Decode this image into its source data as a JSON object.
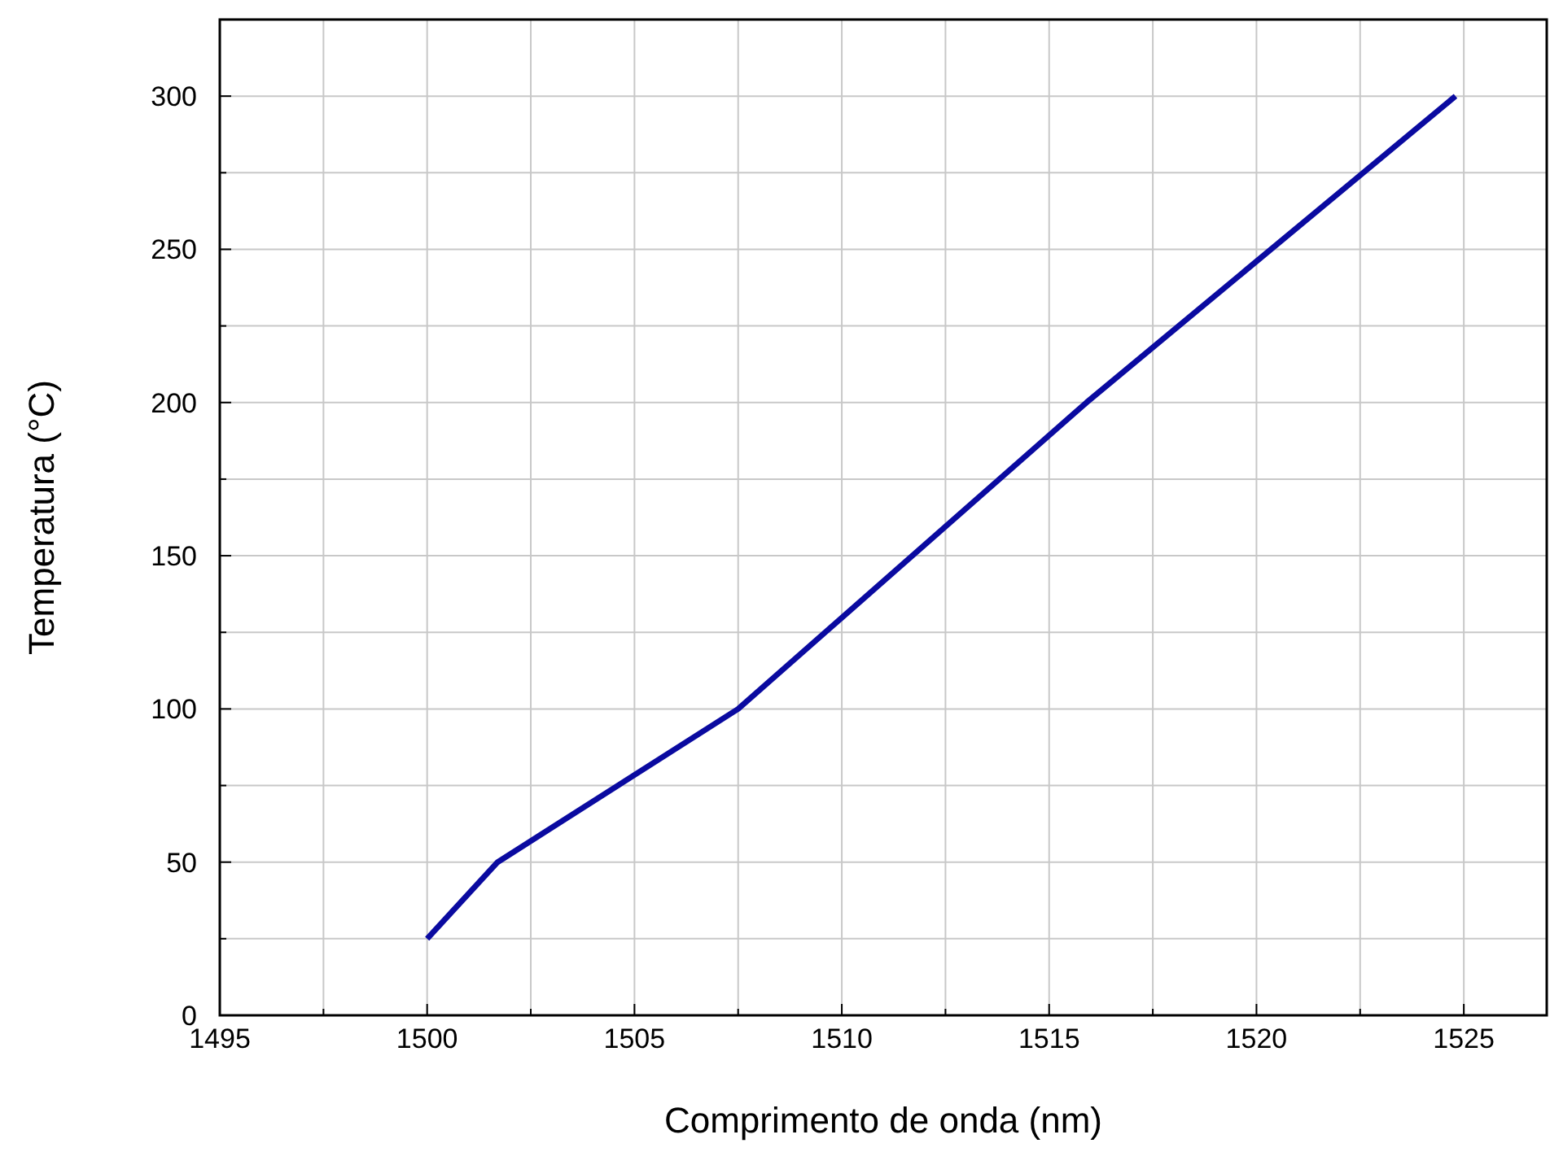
{
  "chart_data": {
    "type": "line",
    "xlabel": "Comprimento de onda (nm)",
    "ylabel": "Temperatura (°C)",
    "x": [
      1500,
      1501.7,
      1507.5,
      1515.9,
      1524.8
    ],
    "series": [
      {
        "color": "#0a0aa0",
        "values": [
          25,
          50,
          100,
          200,
          300
        ]
      }
    ],
    "xlim": [
      1495,
      1527
    ],
    "ylim": [
      0,
      325
    ],
    "xticks": [
      1495,
      {
        "value": 1497.5,
        "label": null
      },
      1500,
      {
        "value": 1502.5,
        "label": null
      },
      1505,
      {
        "value": 1507.5,
        "label": null
      },
      1510,
      {
        "value": 1512.5,
        "label": null
      },
      1515,
      {
        "value": 1517.5,
        "label": null
      },
      1520,
      {
        "value": 1522.5,
        "label": null
      },
      1525
    ],
    "yticks": [
      0,
      {
        "value": 25,
        "label": null
      },
      50,
      {
        "value": 75,
        "label": null
      },
      100,
      {
        "value": 125,
        "label": null
      },
      150,
      {
        "value": 175,
        "label": null
      },
      200,
      {
        "value": 225,
        "label": null
      },
      250,
      {
        "value": 275,
        "label": null
      },
      300
    ],
    "grid": true,
    "marker": "none",
    "line_style": "solid"
  }
}
